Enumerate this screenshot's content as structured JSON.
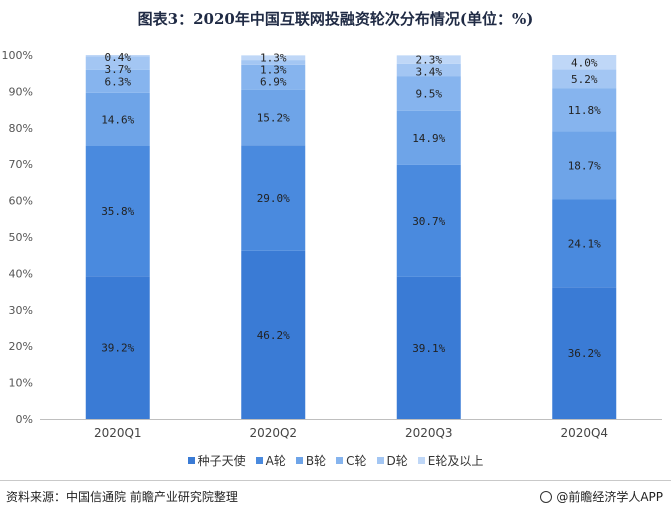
{
  "title": "图表3：2020年中国互联网投融资轮次分布情况(单位：%)",
  "source": "资料来源：中国信通院 前瞻产业研究院整理",
  "credit": "@前瞻经济学人APP",
  "watermark": "前瞻产业研究院",
  "chart_data": {
    "type": "bar",
    "stacked": true,
    "percent_stacked": true,
    "categories": [
      "2020Q1",
      "2020Q2",
      "2020Q3",
      "2020Q4"
    ],
    "ylim": [
      0,
      100
    ],
    "y_ticks": [
      "0%",
      "10%",
      "20%",
      "30%",
      "40%",
      "50%",
      "60%",
      "70%",
      "80%",
      "90%",
      "100%"
    ],
    "grid": false,
    "legend_position": "bottom",
    "series": [
      {
        "name": "种子天使",
        "color": "#3a7bd5",
        "values": [
          39.2,
          46.2,
          39.1,
          36.2
        ],
        "labels": [
          "39.2%",
          "46.2%",
          "39.1%",
          "36.2%"
        ]
      },
      {
        "name": "A轮",
        "color": "#4a8ade",
        "values": [
          35.8,
          29.0,
          30.7,
          24.1
        ],
        "labels": [
          "35.8%",
          "29.0%",
          "30.7%",
          "24.1%"
        ]
      },
      {
        "name": "B轮",
        "color": "#6ea4e8",
        "values": [
          14.6,
          15.2,
          14.9,
          18.7
        ],
        "labels": [
          "14.6%",
          "15.2%",
          "14.9%",
          "18.7%"
        ]
      },
      {
        "name": "C轮",
        "color": "#86b4ee",
        "values": [
          6.3,
          6.9,
          9.5,
          11.8
        ],
        "labels": [
          "6.3%",
          "6.9%",
          "9.5%",
          "11.8%"
        ]
      },
      {
        "name": "D轮",
        "color": "#a3c6f3",
        "values": [
          3.7,
          1.3,
          3.4,
          5.2
        ],
        "labels": [
          "3.7%",
          "1.3%",
          "3.4%",
          "5.2%"
        ]
      },
      {
        "name": "E轮及以上",
        "color": "#bfd7f7",
        "values": [
          0.4,
          1.3,
          2.3,
          4.0
        ],
        "labels": [
          "0.4%",
          "1.3%",
          "2.3%",
          "4.0%"
        ]
      }
    ]
  }
}
